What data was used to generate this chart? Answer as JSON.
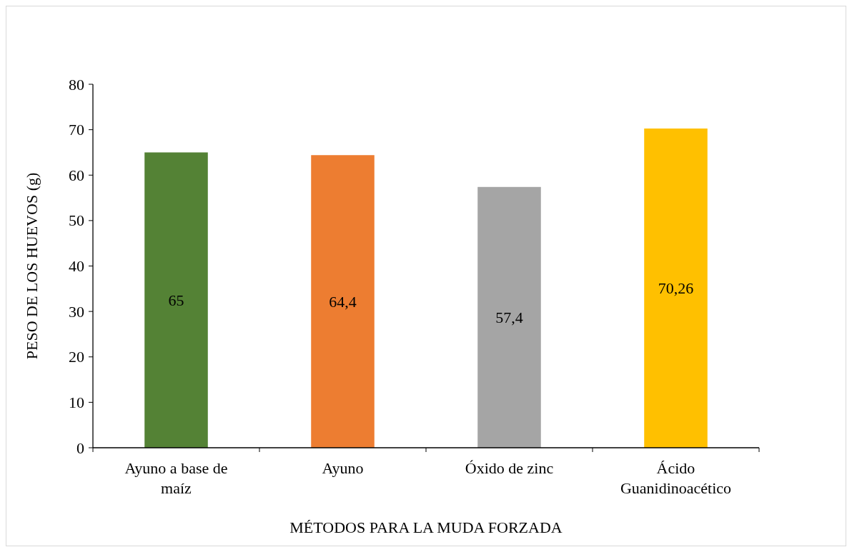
{
  "chart_data": {
    "type": "bar",
    "xlabel": "MÉTODOS PARA LA MUDA FORZADA",
    "ylabel": "PESO DE LOS HUEVOS (g)",
    "categories": [
      "Ayuno a base de maíz",
      "Ayuno",
      "Óxido de zinc",
      "Ácido Guanidinoacético"
    ],
    "values": [
      65,
      64.4,
      57.4,
      70.26
    ],
    "colors": [
      "#548235",
      "#ed7d31",
      "#a5a5a5",
      "#ffc000"
    ],
    "value_labels": [
      "65",
      "64,4",
      "57,4",
      "70,26"
    ],
    "ylim": [
      0,
      80
    ],
    "yticks": [
      0,
      10,
      20,
      30,
      40,
      50,
      60,
      70,
      80
    ],
    "grid": false
  }
}
